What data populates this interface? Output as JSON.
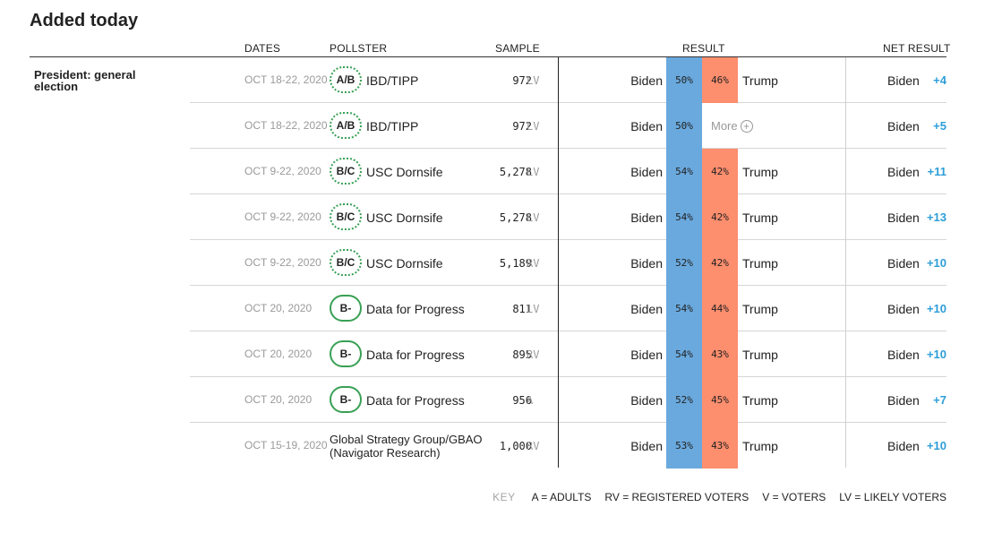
{
  "title": "Added today",
  "headers": {
    "dates": "DATES",
    "pollster": "POLLSTER",
    "sample": "SAMPLE",
    "result": "RESULT",
    "net_result": "NET RESULT"
  },
  "section": "President: general election",
  "rows": [
    {
      "dates": "OCT 18-22, 2020",
      "grade": "A/B",
      "grade_style": "dotted",
      "pollster": "IBD/TIPP",
      "sample": "972",
      "population": "LV",
      "dem": "Biden",
      "dem_pct": "50%",
      "rep": "Trump",
      "rep_pct": "46%",
      "net_cand": "Biden",
      "net": "+4"
    },
    {
      "dates": "OCT 18-22, 2020",
      "grade": "A/B",
      "grade_style": "dotted",
      "pollster": "IBD/TIPP",
      "sample": "972",
      "population": "LV",
      "dem": "Biden",
      "dem_pct": "50%",
      "more": "More",
      "net_cand": "Biden",
      "net": "+5"
    },
    {
      "dates": "OCT 9-22, 2020",
      "grade": "B/C",
      "grade_style": "dotted",
      "pollster": "USC Dornsife",
      "sample": "5,278",
      "population": "LV",
      "dem": "Biden",
      "dem_pct": "54%",
      "rep": "Trump",
      "rep_pct": "42%",
      "net_cand": "Biden",
      "net": "+11"
    },
    {
      "dates": "OCT 9-22, 2020",
      "grade": "B/C",
      "grade_style": "dotted",
      "pollster": "USC Dornsife",
      "sample": "5,278",
      "population": "LV",
      "dem": "Biden",
      "dem_pct": "54%",
      "rep": "Trump",
      "rep_pct": "42%",
      "net_cand": "Biden",
      "net": "+13"
    },
    {
      "dates": "OCT 9-22, 2020",
      "grade": "B/C",
      "grade_style": "dotted",
      "pollster": "USC Dornsife",
      "sample": "5,189",
      "population": "RV",
      "dem": "Biden",
      "dem_pct": "52%",
      "rep": "Trump",
      "rep_pct": "42%",
      "net_cand": "Biden",
      "net": "+10"
    },
    {
      "dates": "OCT 20, 2020",
      "grade": "B-",
      "grade_style": "solid",
      "pollster": "Data for Progress",
      "sample": "811",
      "population": "LV",
      "dem": "Biden",
      "dem_pct": "54%",
      "rep": "Trump",
      "rep_pct": "44%",
      "net_cand": "Biden",
      "net": "+10"
    },
    {
      "dates": "OCT 20, 2020",
      "grade": "B-",
      "grade_style": "solid",
      "pollster": "Data for Progress",
      "sample": "895",
      "population": "RV",
      "dem": "Biden",
      "dem_pct": "54%",
      "rep": "Trump",
      "rep_pct": "43%",
      "net_cand": "Biden",
      "net": "+10"
    },
    {
      "dates": "OCT 20, 2020",
      "grade": "B-",
      "grade_style": "solid",
      "pollster": "Data for Progress",
      "sample": "956",
      "population": "A",
      "dem": "Biden",
      "dem_pct": "52%",
      "rep": "Trump",
      "rep_pct": "45%",
      "net_cand": "Biden",
      "net": "+7"
    },
    {
      "dates": "OCT 15-19, 2020",
      "grade": "",
      "grade_style": "none",
      "pollster": "Global Strategy Group/GBAO (Navigator Research)",
      "sample": "1,000",
      "population": "RV",
      "dem": "Biden",
      "dem_pct": "53%",
      "rep": "Trump",
      "rep_pct": "43%",
      "net_cand": "Biden",
      "net": "+10"
    }
  ],
  "key": {
    "label": "KEY",
    "items": [
      "A = ADULTS",
      "RV = REGISTERED VOTERS",
      "V = VOTERS",
      "LV = LIKELY VOTERS"
    ]
  },
  "colors": {
    "dem": "#6aa9de",
    "rep": "#fd8e6e",
    "net": "#2d9ed8",
    "grade_border": "#39a055"
  },
  "icons": {
    "more": "plus-circle-icon"
  }
}
